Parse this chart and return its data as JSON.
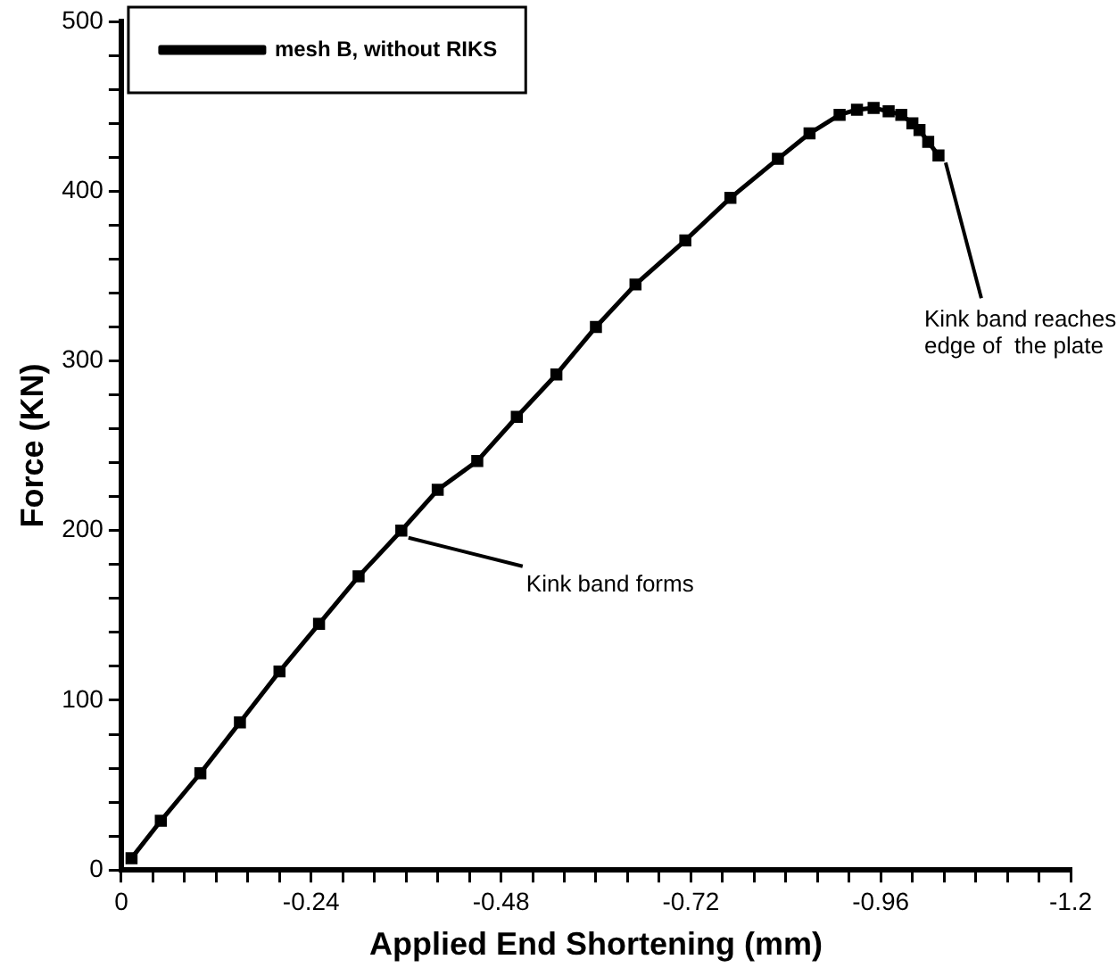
{
  "chart_data": {
    "type": "line",
    "xlabel": "Applied End Shortening (mm)",
    "ylabel": "Force (KN)",
    "xlim": [
      0,
      -1.2
    ],
    "ylim": [
      0,
      500
    ],
    "xticks": [
      0,
      {
        "value": -0.04,
        "label": null
      },
      {
        "value": -0.08,
        "label": null
      },
      {
        "value": -0.12,
        "label": null
      },
      {
        "value": -0.16,
        "label": null
      },
      {
        "value": -0.2,
        "label": null
      },
      -0.24,
      {
        "value": -0.28,
        "label": null
      },
      {
        "value": -0.32,
        "label": null
      },
      {
        "value": -0.36,
        "label": null
      },
      {
        "value": -0.4,
        "label": null
      },
      {
        "value": -0.44,
        "label": null
      },
      -0.48,
      {
        "value": -0.52,
        "label": null
      },
      {
        "value": -0.56,
        "label": null
      },
      {
        "value": -0.6,
        "label": null
      },
      {
        "value": -0.64,
        "label": null
      },
      {
        "value": -0.68,
        "label": null
      },
      -0.72,
      {
        "value": -0.76,
        "label": null
      },
      {
        "value": -0.8,
        "label": null
      },
      {
        "value": -0.84,
        "label": null
      },
      {
        "value": -0.88,
        "label": null
      },
      {
        "value": -0.92,
        "label": null
      },
      -0.96,
      {
        "value": -1.0,
        "label": null
      },
      {
        "value": -1.04,
        "label": null
      },
      {
        "value": -1.08,
        "label": null
      },
      {
        "value": -1.12,
        "label": null
      },
      {
        "value": -1.16,
        "label": null
      },
      -1.2
    ],
    "yticks": [
      0,
      {
        "value": 20,
        "label": null
      },
      {
        "value": 40,
        "label": null
      },
      {
        "value": 60,
        "label": null
      },
      {
        "value": 80,
        "label": null
      },
      100,
      {
        "value": 120,
        "label": null
      },
      {
        "value": 140,
        "label": null
      },
      {
        "value": 160,
        "label": null
      },
      {
        "value": 180,
        "label": null
      },
      200,
      {
        "value": 220,
        "label": null
      },
      {
        "value": 240,
        "label": null
      },
      {
        "value": 260,
        "label": null
      },
      {
        "value": 280,
        "label": null
      },
      300,
      {
        "value": 320,
        "label": null
      },
      {
        "value": 340,
        "label": null
      },
      {
        "value": 360,
        "label": null
      },
      {
        "value": 380,
        "label": null
      },
      400,
      {
        "value": 420,
        "label": null
      },
      {
        "value": 440,
        "label": null
      },
      {
        "value": 460,
        "label": null
      },
      {
        "value": 480,
        "label": null
      },
      500
    ],
    "legend": "top left",
    "marker": "square",
    "line_style": "solid",
    "series": [
      {
        "name": "mesh B, without RIKS",
        "color": "#000000",
        "x": [
          -0.013,
          -0.05,
          -0.1,
          -0.15,
          -0.2,
          -0.25,
          -0.3,
          -0.354,
          -0.4,
          -0.45,
          -0.5,
          -0.55,
          -0.6,
          -0.65,
          -0.713,
          -0.77,
          -0.83,
          -0.87,
          -0.908,
          -0.93,
          -0.951,
          -0.97,
          -0.986,
          -1.0,
          -1.009,
          -1.02,
          -1.033
        ],
        "values": [
          7,
          29,
          57,
          87,
          117,
          145,
          173,
          200,
          224,
          241,
          267,
          292,
          320,
          345,
          371,
          396,
          419,
          434,
          445,
          448,
          449,
          447,
          445,
          440,
          436,
          429,
          421
        ]
      }
    ],
    "annotations": [
      {
        "text": "Kink band forms",
        "x": -0.354,
        "y": 200
      },
      {
        "text": "Kink band reaches\nedge of  the plate",
        "x": -1.033,
        "y": 421
      }
    ]
  }
}
